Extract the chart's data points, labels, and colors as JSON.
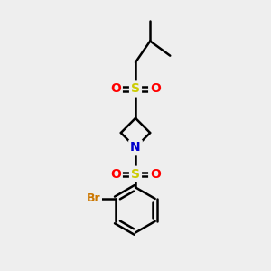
{
  "bg_color": "#eeeeee",
  "atom_colors": {
    "C": "#000000",
    "N": "#0000cc",
    "S": "#cccc00",
    "O": "#ff0000",
    "Br": "#cc7700",
    "H": "#000000"
  },
  "bond_color": "#000000",
  "bond_width": 1.8,
  "font_size_atom": 10,
  "scale": 1.0
}
